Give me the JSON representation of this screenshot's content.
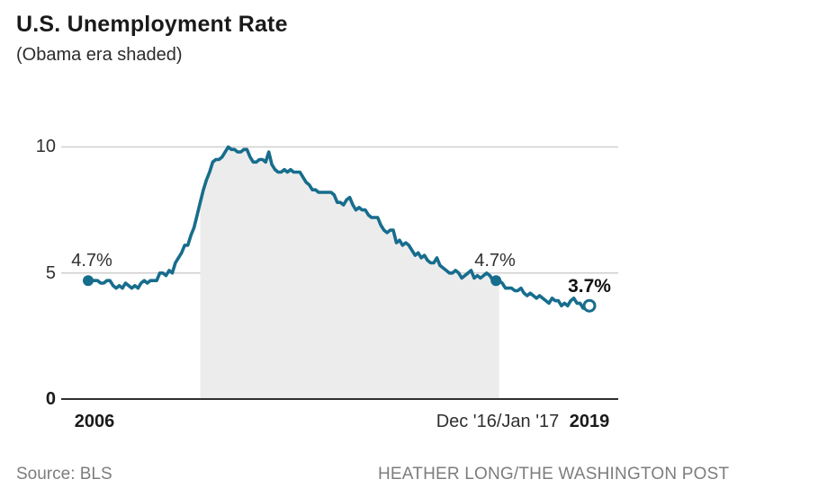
{
  "header": {
    "title": "U.S. Unemployment Rate",
    "subtitle": "(Obama era shaded)"
  },
  "footer": {
    "source": "Source: BLS",
    "credit": "HEATHER LONG/THE WASHINGTON POST"
  },
  "axes": {
    "x_labels": [
      {
        "label": "2006",
        "bold": true
      },
      {
        "label": "Dec '16/Jan '17",
        "bold": false
      },
      {
        "label": "2019",
        "bold": true
      }
    ]
  },
  "colors": {
    "line": "#176D8D",
    "shade": "#ECECEC",
    "grid": "#CFCFCF",
    "axis": "#2F2F2F"
  },
  "chart_data": {
    "type": "line",
    "title": "U.S. Unemployment Rate",
    "subtitle": "(Obama era shaded)",
    "unit": "percent",
    "frequency": "monthly",
    "x_start": "2006-01",
    "x_end": "2019-06",
    "ylim": [
      0,
      10
    ],
    "y_ticks": [
      0,
      5,
      10
    ],
    "grid": "horizontal",
    "values": [
      4.7,
      4.7,
      4.7,
      4.7,
      4.6,
      4.6,
      4.7,
      4.7,
      4.5,
      4.4,
      4.5,
      4.4,
      4.6,
      4.5,
      4.4,
      4.5,
      4.4,
      4.6,
      4.7,
      4.6,
      4.7,
      4.7,
      4.7,
      5.0,
      5.0,
      4.9,
      5.1,
      5.0,
      5.4,
      5.6,
      5.8,
      6.1,
      6.1,
      6.5,
      6.8,
      7.3,
      7.8,
      8.3,
      8.7,
      9.0,
      9.4,
      9.5,
      9.5,
      9.6,
      9.8,
      10.0,
      9.9,
      9.9,
      9.8,
      9.8,
      9.9,
      9.9,
      9.6,
      9.4,
      9.4,
      9.5,
      9.5,
      9.4,
      9.8,
      9.3,
      9.1,
      9.0,
      9.0,
      9.1,
      9.0,
      9.1,
      9.0,
      9.0,
      9.0,
      8.8,
      8.6,
      8.5,
      8.3,
      8.3,
      8.2,
      8.2,
      8.2,
      8.2,
      8.2,
      8.1,
      7.8,
      7.8,
      7.7,
      7.9,
      8.0,
      7.7,
      7.5,
      7.6,
      7.5,
      7.5,
      7.3,
      7.2,
      7.2,
      7.2,
      6.9,
      6.7,
      6.6,
      6.7,
      6.7,
      6.2,
      6.3,
      6.1,
      6.2,
      6.1,
      5.9,
      5.7,
      5.8,
      5.6,
      5.7,
      5.5,
      5.4,
      5.4,
      5.6,
      5.3,
      5.2,
      5.1,
      5.0,
      5.0,
      5.1,
      5.0,
      4.8,
      4.9,
      5.0,
      5.1,
      4.8,
      4.9,
      4.8,
      4.9,
      5.0,
      4.9,
      4.7,
      4.7,
      4.7,
      4.6,
      4.4,
      4.4,
      4.4,
      4.3,
      4.3,
      4.4,
      4.2,
      4.1,
      4.2,
      4.1,
      4.0,
      4.1,
      4.0,
      3.9,
      3.8,
      4.0,
      3.9,
      3.9,
      3.7,
      3.8,
      3.7,
      3.9,
      4.0,
      3.8,
      3.8,
      3.6,
      3.6,
      3.7
    ],
    "shaded_region": {
      "label": "Obama era",
      "from": "2009-01",
      "to": "2017-01",
      "from_index": 36,
      "to_index": 132
    },
    "markers": [
      {
        "index": 0,
        "date": "2006-01",
        "value": 4.7,
        "label": "4.7%",
        "style": "filled"
      },
      {
        "index": 131,
        "date": "2016-12",
        "value": 4.7,
        "label": "4.7%",
        "style": "filled"
      },
      {
        "index": 161,
        "date": "2019-06",
        "value": 3.7,
        "label": "3.7%",
        "style": "open"
      }
    ]
  }
}
